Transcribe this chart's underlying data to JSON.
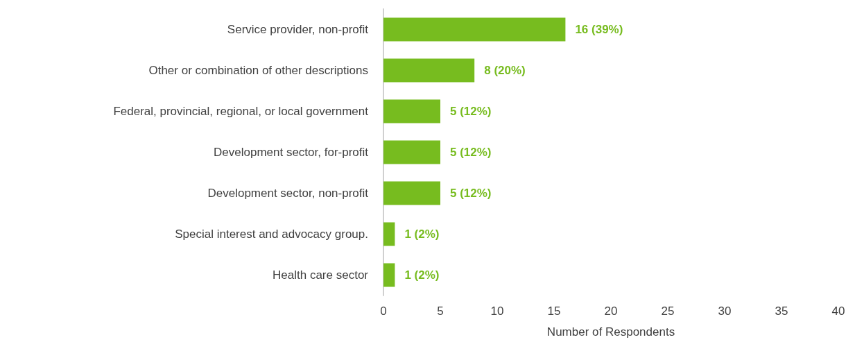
{
  "chart_data": {
    "type": "bar",
    "orientation": "horizontal",
    "categories": [
      "Service provider, non-profit",
      "Other or combination of other descriptions",
      "Federal, provincial, regional, or local government",
      "Development sector, for-profit",
      "Development sector, non-profit",
      "Special interest and advocacy group.",
      "Health care sector"
    ],
    "values": [
      16,
      8,
      5,
      5,
      5,
      1,
      1
    ],
    "value_labels": [
      "16 (39%)",
      "8 (20%)",
      "5 (12%)",
      "5 (12%)",
      "5 (12%)",
      "1 (2%)",
      "1 (2%)"
    ],
    "color": "#77bc1f",
    "xlabel": "Number of Respondents",
    "xlim": [
      0,
      40
    ],
    "xticks": [
      0,
      5,
      10,
      15,
      20,
      25,
      30,
      35,
      40
    ],
    "grid": false
  }
}
